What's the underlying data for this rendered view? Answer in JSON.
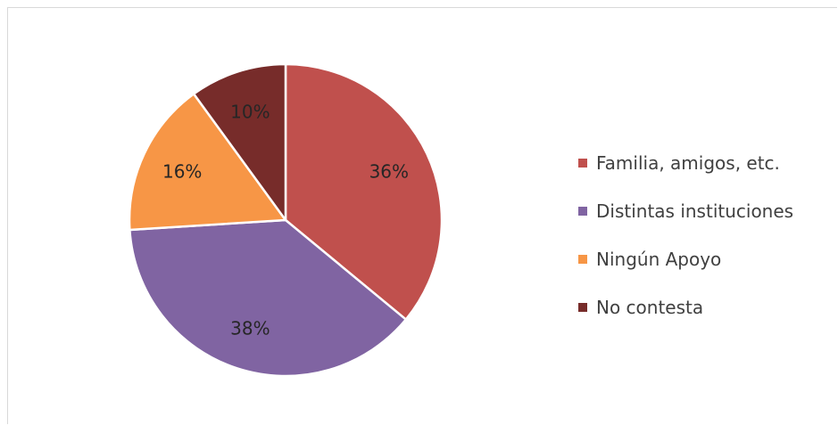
{
  "chart_data": {
    "type": "pie",
    "series": [
      {
        "name": "",
        "slices": [
          {
            "label": "Familia, amigos, etc.",
            "value": 36,
            "value_label": "36%",
            "color": "#C0504D"
          },
          {
            "label": "Distintas instituciones",
            "value": 38,
            "value_label": "38%",
            "color": "#8064A2"
          },
          {
            "label": "Ningún Apoyo",
            "value": 16,
            "value_label": "16%",
            "color": "#F79646"
          },
          {
            "label": "No contesta",
            "value": 10,
            "value_label": "10%",
            "color": "#772C2A"
          }
        ]
      }
    ],
    "start_angle": "12 o'clock",
    "direction": "clockwise",
    "legend_position": "right"
  },
  "legend": {
    "items": [
      {
        "label": "Familia, amigos, etc.",
        "color": "#C0504D"
      },
      {
        "label": "Distintas instituciones",
        "color": "#8064A2"
      },
      {
        "label": "Ningún Apoyo",
        "color": "#F79646"
      },
      {
        "label": "No contesta",
        "color": "#772C2A"
      }
    ]
  }
}
